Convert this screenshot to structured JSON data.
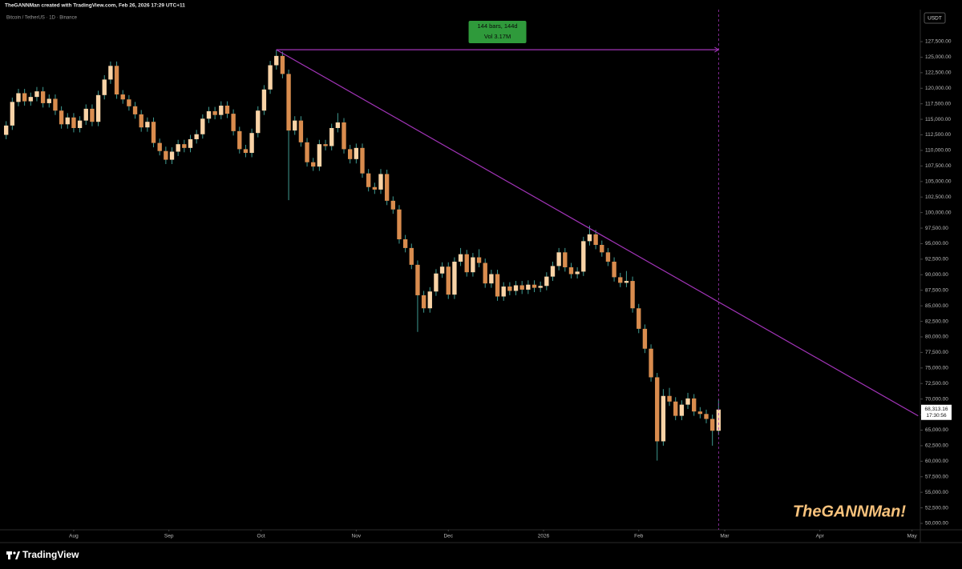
{
  "header": "TheGANNMan created with TradingView.com, Feb 26, 2026 17:29 UTC+11",
  "brand": "TradingView",
  "watermark": "TheGANNMan!",
  "chart_data": {
    "type": "candlestick",
    "title": "Bitcoin / TetherUS · 1D · Binance",
    "currency": "USDT",
    "up_color": "#f9d3a6",
    "down_color": "#d98c4e",
    "wick_color": "#3f9a90",
    "grid": false,
    "xlim": [
      -24,
      275.7
    ],
    "xticks": [
      {
        "value": 0,
        "label": "Aug"
      },
      {
        "value": 31,
        "label": "Sep"
      },
      {
        "value": 61,
        "label": "Oct"
      },
      {
        "value": 92,
        "label": "Nov"
      },
      {
        "value": 122,
        "label": "Dec"
      },
      {
        "value": 153,
        "label": "2026"
      },
      {
        "value": 184,
        "label": "Feb"
      },
      {
        "value": 212,
        "label": "Mar"
      },
      {
        "value": 243,
        "label": "Apr"
      },
      {
        "value": 273,
        "label": "May"
      }
    ],
    "ylim": [
      48970,
      132650
    ],
    "yticks": [
      {
        "value": 50000,
        "label": "50,000.00"
      },
      {
        "value": 52500,
        "label": "52,500.00"
      },
      {
        "value": 55000,
        "label": "55,000.00"
      },
      {
        "value": 57500,
        "label": "57,500.00"
      },
      {
        "value": 60000,
        "label": "60,000.00"
      },
      {
        "value": 62500,
        "label": "62,500.00"
      },
      {
        "value": 65000,
        "label": "65,000.00"
      },
      {
        "value": 67500,
        "label": "67,500.00"
      },
      {
        "value": 70000,
        "label": "70,000.00"
      },
      {
        "value": 72500,
        "label": "72,500.00"
      },
      {
        "value": 75000,
        "label": "75,000.00"
      },
      {
        "value": 77500,
        "label": "77,500.00"
      },
      {
        "value": 80000,
        "label": "80,000.00"
      },
      {
        "value": 82500,
        "label": "82,500.00"
      },
      {
        "value": 85000,
        "label": "85,000.00"
      },
      {
        "value": 87500,
        "label": "87,500.00"
      },
      {
        "value": 90000,
        "label": "90,000.00"
      },
      {
        "value": 92500,
        "label": "92,500.00"
      },
      {
        "value": 95000,
        "label": "95,000.00"
      },
      {
        "value": 97500,
        "label": "97,500.00"
      },
      {
        "value": 100000,
        "label": "100,000.00"
      },
      {
        "value": 102500,
        "label": "102,500.00"
      },
      {
        "value": 105000,
        "label": "105,000.00"
      },
      {
        "value": 107500,
        "label": "107,500.00"
      },
      {
        "value": 110000,
        "label": "110,000.00"
      },
      {
        "value": 112500,
        "label": "112,500.00"
      },
      {
        "value": 115000,
        "label": "115,000.00"
      },
      {
        "value": 117500,
        "label": "117,500.00"
      },
      {
        "value": 120000,
        "label": "120,000.00"
      },
      {
        "value": 122500,
        "label": "122,500.00"
      },
      {
        "value": 125000,
        "label": "125,000.00"
      },
      {
        "value": 127500,
        "label": "127,500.00"
      }
    ],
    "x": [
      -22,
      -20,
      -18,
      -16,
      -14,
      -12,
      -10,
      -8,
      -6,
      -4,
      -2,
      0,
      2,
      4,
      6,
      8,
      10,
      12,
      14,
      16,
      18,
      20,
      22,
      24,
      26,
      28,
      30,
      32,
      34,
      36,
      38,
      40,
      42,
      44,
      46,
      48,
      50,
      52,
      54,
      56,
      58,
      60,
      62,
      64,
      66,
      68,
      70,
      72,
      74,
      76,
      78,
      80,
      82,
      84,
      86,
      88,
      90,
      92,
      94,
      96,
      98,
      100,
      102,
      104,
      106,
      108,
      110,
      112,
      114,
      116,
      118,
      120,
      122,
      124,
      126,
      128,
      130,
      132,
      134,
      136,
      138,
      140,
      142,
      144,
      146,
      148,
      150,
      152,
      154,
      156,
      158,
      160,
      162,
      164,
      166,
      168,
      170,
      172,
      174,
      176,
      178,
      180,
      182,
      184,
      186,
      188,
      190,
      192,
      194,
      196,
      198,
      200,
      202,
      204,
      206,
      208,
      210
    ],
    "open": [
      112500,
      114000,
      117800,
      119200,
      117900,
      118600,
      119500,
      117600,
      118300,
      116400,
      114200,
      115300,
      113600,
      114800,
      116700,
      114600,
      118900,
      121400,
      123600,
      119000,
      118200,
      117100,
      115800,
      113700,
      114600,
      111200,
      109900,
      108500,
      109800,
      111000,
      110400,
      111800,
      112600,
      115100,
      116300,
      115700,
      117200,
      115900,
      113100,
      110200,
      109600,
      112800,
      116400,
      119800,
      123700,
      125200,
      122300,
      113200,
      114800,
      111300,
      108100,
      107400,
      111000,
      110700,
      113600,
      114500,
      110200,
      108600,
      110400,
      106300,
      104100,
      103700,
      106200,
      101900,
      100500,
      95700,
      94300,
      91600,
      86700,
      84600,
      87300,
      90200,
      91300,
      86800,
      92100,
      93300,
      90400,
      92800,
      91900,
      88600,
      90100,
      86500,
      88100,
      87400,
      88300,
      87600,
      88400,
      87900,
      88200,
      89700,
      91400,
      93600,
      91200,
      90100,
      90500,
      95400,
      96500,
      94800,
      93600,
      92100,
      89600,
      88700,
      89000,
      84600,
      81300,
      78100,
      73500,
      63200,
      70500,
      69600,
      67300,
      69100,
      70100,
      68000,
      67600,
      66800,
      64900
    ],
    "high": [
      114700,
      118500,
      119900,
      119900,
      119300,
      120200,
      120200,
      119000,
      119000,
      117100,
      116000,
      116000,
      115500,
      117400,
      117400,
      119600,
      122100,
      124300,
      124300,
      119700,
      118900,
      117800,
      116500,
      115300,
      115300,
      111900,
      110600,
      110500,
      111700,
      111700,
      112500,
      113300,
      115800,
      117000,
      117000,
      117900,
      117900,
      116600,
      113800,
      110900,
      113500,
      117100,
      120500,
      124400,
      126200,
      125900,
      123000,
      115500,
      115500,
      112000,
      108800,
      111700,
      111700,
      114300,
      116000,
      115200,
      110900,
      111100,
      111100,
      107000,
      104800,
      107000,
      106900,
      102600,
      101200,
      96400,
      95000,
      92300,
      87400,
      88000,
      90900,
      92000,
      92000,
      92800,
      94300,
      94000,
      93500,
      94100,
      92600,
      90800,
      90800,
      88800,
      88800,
      89000,
      89000,
      89100,
      89100,
      88900,
      90400,
      92100,
      94300,
      94300,
      91900,
      91200,
      96100,
      97900,
      97200,
      95500,
      94300,
      92800,
      90300,
      90600,
      89700,
      85300,
      82000,
      78800,
      74200,
      71600,
      71800,
      70300,
      69800,
      71000,
      70800,
      68700,
      68300,
      67500,
      69900
    ],
    "low": [
      111800,
      113300,
      117100,
      117200,
      117200,
      117900,
      116900,
      116900,
      115700,
      113500,
      113500,
      112900,
      112900,
      114100,
      113900,
      113900,
      118200,
      120700,
      118300,
      117500,
      116400,
      115100,
      113000,
      113000,
      110500,
      109200,
      107800,
      107800,
      109100,
      109700,
      109700,
      111100,
      111900,
      114400,
      115000,
      115000,
      115200,
      112400,
      109500,
      108900,
      108900,
      112100,
      115700,
      119100,
      123000,
      121600,
      102000,
      112500,
      110600,
      107400,
      106700,
      106700,
      110000,
      110000,
      112900,
      109500,
      107900,
      107900,
      105600,
      103400,
      103000,
      103000,
      101200,
      99800,
      95000,
      93600,
      90900,
      80800,
      83900,
      83900,
      86600,
      89500,
      86100,
      86100,
      91400,
      89700,
      89700,
      91200,
      87900,
      87900,
      85800,
      85800,
      86700,
      86700,
      86900,
      86900,
      87200,
      87200,
      87500,
      89000,
      90700,
      90500,
      89400,
      89400,
      89800,
      94700,
      94100,
      92900,
      91400,
      88900,
      88000,
      88000,
      83900,
      80600,
      77400,
      72800,
      60100,
      62500,
      68900,
      66600,
      66600,
      68400,
      67300,
      66900,
      66100,
      62500,
      64200
    ],
    "close": [
      114000,
      117800,
      119200,
      117900,
      118600,
      119500,
      117600,
      118300,
      116400,
      114200,
      115300,
      113600,
      114800,
      116700,
      114600,
      118900,
      121400,
      123600,
      119000,
      118200,
      117100,
      115800,
      113700,
      114600,
      111200,
      109900,
      108500,
      109800,
      111000,
      110400,
      111800,
      112600,
      115100,
      116300,
      115700,
      117200,
      115900,
      113100,
      110200,
      109600,
      112800,
      116400,
      119800,
      123700,
      125200,
      122300,
      113200,
      114800,
      111300,
      108100,
      107400,
      111000,
      110700,
      113600,
      114500,
      110200,
      108600,
      110400,
      106300,
      104100,
      103700,
      106200,
      101900,
      100500,
      95700,
      94300,
      91600,
      86700,
      84600,
      87300,
      90200,
      91300,
      86800,
      92100,
      93300,
      90400,
      92800,
      91900,
      88600,
      90100,
      86500,
      88100,
      87400,
      88300,
      87600,
      88400,
      87900,
      88200,
      89700,
      91400,
      93600,
      91200,
      90100,
      90500,
      95400,
      96500,
      94800,
      93600,
      92100,
      89600,
      88700,
      89000,
      84600,
      81300,
      78100,
      73500,
      63200,
      70500,
      69600,
      67300,
      69100,
      70100,
      68000,
      67600,
      66800,
      64900,
      68313.16
    ],
    "last_label": "68,313.16",
    "countdown": "17:30:56",
    "trend_line": {
      "x": [
        66,
        275
      ],
      "y": [
        126200,
        67300
      ],
      "color": "#a234b8"
    },
    "measure": {
      "x": [
        66,
        210
      ],
      "y": 126200,
      "color": "#a234b8",
      "box_color": "#2f9a3b",
      "labels": [
        "144 bars, 144d",
        "Vol 3.17M"
      ]
    }
  }
}
